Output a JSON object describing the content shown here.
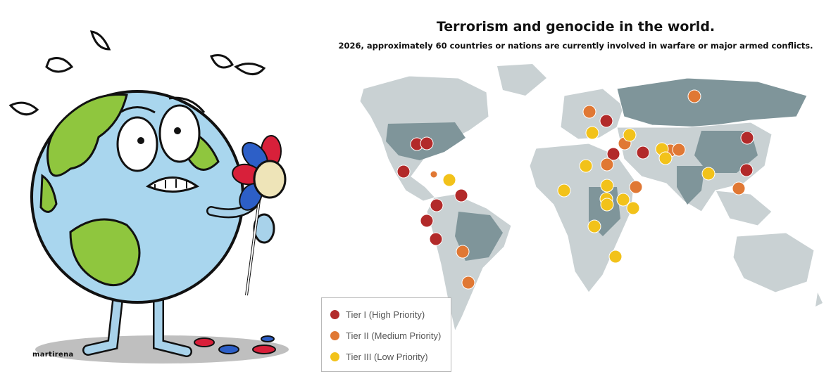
{
  "header": {
    "title": "Terrorism and genocide in the world.",
    "subtitle": "2026, approximately 60 countries or nations are currently involved in warfare or major armed conflicts."
  },
  "cartoon": {
    "signature": "martirena",
    "icon": "sad-earth-holding-flower-icon"
  },
  "legend": {
    "items": [
      {
        "label": "Tier I (High Priority)",
        "color": "#b22a2a"
      },
      {
        "label": "Tier II (Medium Priority)",
        "color": "#e07834"
      },
      {
        "label": "Tier III (Low Priority)",
        "color": "#f2c21a"
      }
    ]
  },
  "colors": {
    "ocean": "#ffffff",
    "land_light": "#c9d1d3",
    "land_dark": "#7f959a",
    "tier1": "#b22a2a",
    "tier2": "#e07834",
    "tier3": "#f2c21a"
  }
}
